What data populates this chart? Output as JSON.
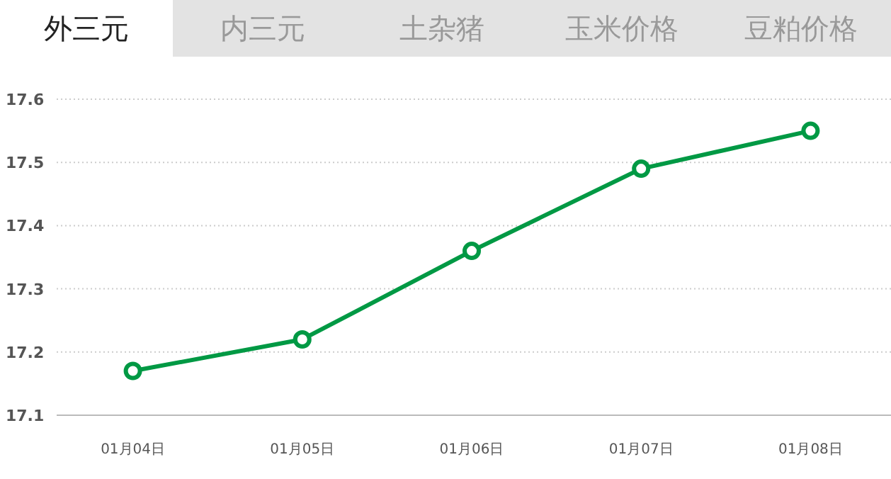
{
  "chart_data": {
    "type": "line",
    "title": "外三元",
    "annotations": [
      "内三元",
      "土杂猪",
      "玉米价格",
      "豆粕价格"
    ],
    "categories": [
      "01月04日",
      "01月05日",
      "01月06日",
      "01月07日",
      "01月08日"
    ],
    "series": [
      {
        "color": "#009944",
        "values": [
          17.17,
          17.22,
          17.36,
          17.49,
          17.55
        ]
      }
    ],
    "ylim": [
      17.1,
      17.6
    ],
    "yticks": [
      17.1,
      17.2,
      17.3,
      17.4,
      17.5,
      17.6
    ],
    "grid": "y",
    "marker": "circle",
    "line_style": "solid"
  }
}
